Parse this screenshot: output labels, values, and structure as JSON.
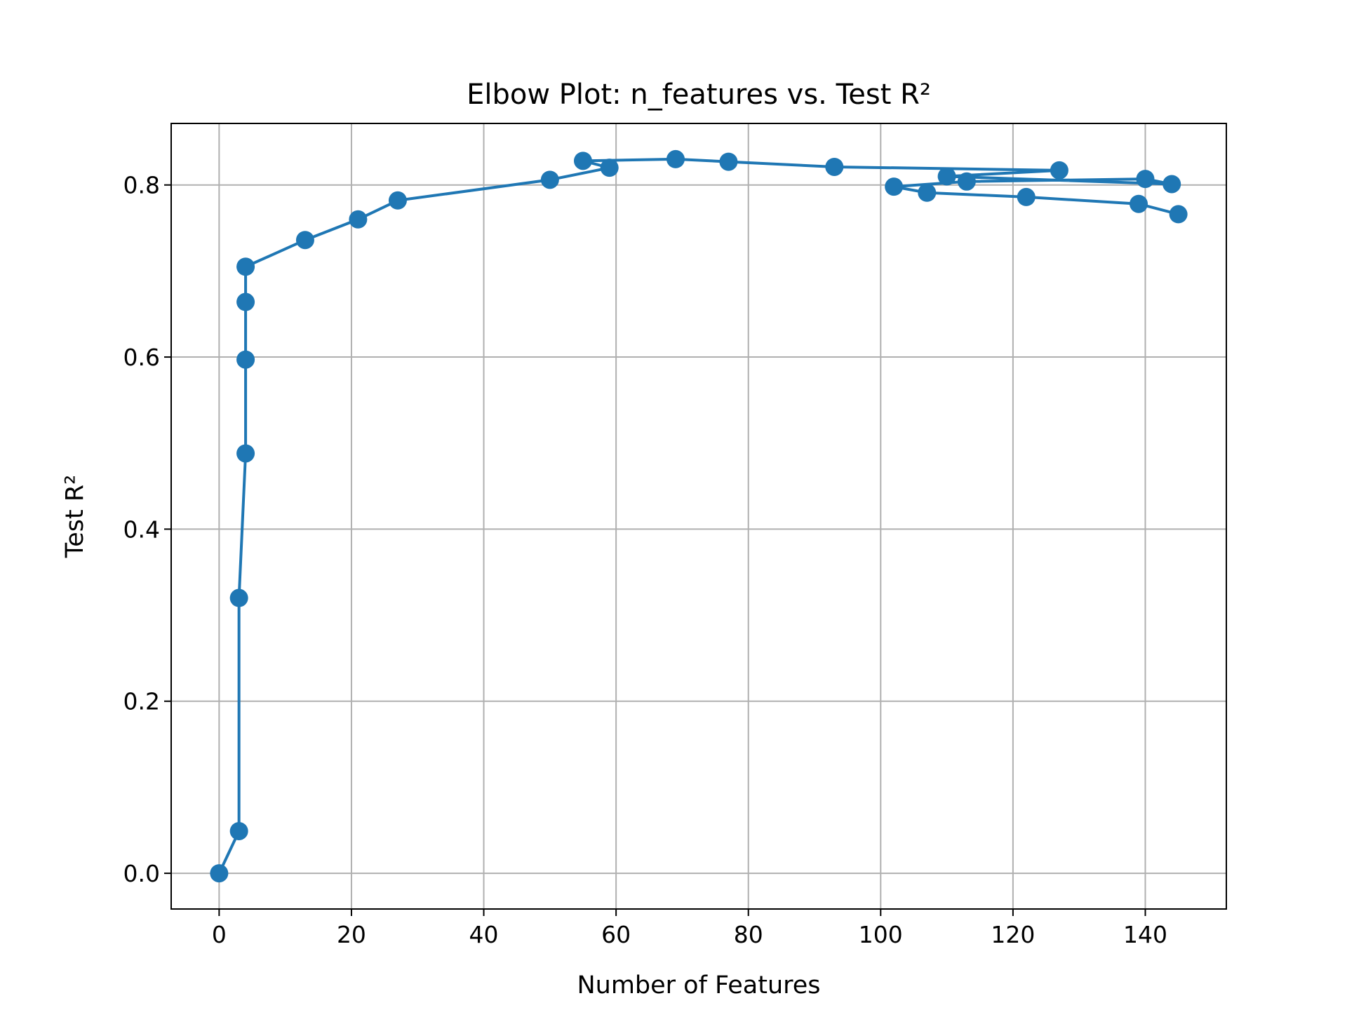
{
  "chart_data": {
    "type": "line",
    "title": "Elbow Plot: n_features vs. Test R²",
    "xlabel": "Number of Features",
    "ylabel": "Test R²",
    "xlim": [
      -7.25,
      152.25
    ],
    "ylim": [
      -0.0415,
      0.8715
    ],
    "xticks": [
      0,
      20,
      40,
      60,
      80,
      100,
      120,
      140
    ],
    "yticks": [
      0.0,
      0.2,
      0.4,
      0.6,
      0.8
    ],
    "xtick_labels": [
      "0",
      "20",
      "40",
      "60",
      "80",
      "100",
      "120",
      "140"
    ],
    "ytick_labels": [
      "0.0",
      "0.2",
      "0.4",
      "0.6",
      "0.8"
    ],
    "grid": true,
    "markers": true,
    "color": "#1f77b4",
    "series": [
      {
        "x": [
          0,
          3,
          3,
          4,
          4,
          4,
          4,
          13,
          21,
          27,
          50,
          59,
          55,
          69,
          77,
          93,
          127,
          110,
          144,
          140,
          113,
          102,
          107,
          122,
          139,
          145
        ],
        "y": [
          0.0,
          0.049,
          0.32,
          0.488,
          0.597,
          0.664,
          0.705,
          0.736,
          0.76,
          0.782,
          0.806,
          0.82,
          0.828,
          0.83,
          0.827,
          0.821,
          0.817,
          0.81,
          0.801,
          0.807,
          0.804,
          0.798,
          0.791,
          0.786,
          0.778,
          0.766
        ]
      }
    ]
  }
}
